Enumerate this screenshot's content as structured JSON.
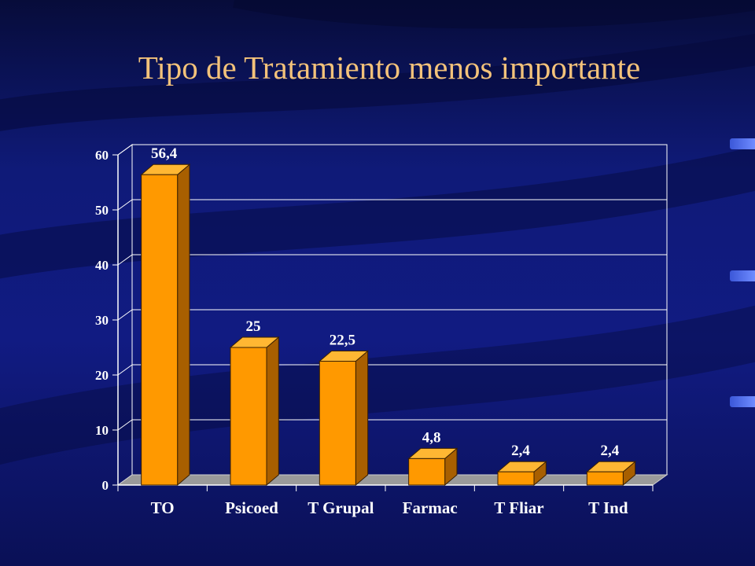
{
  "slide": {
    "title": "Tipo de Tratamiento menos importante",
    "background_color": "#0d1466",
    "title_color": "#f3c27a"
  },
  "chart_data": {
    "type": "bar",
    "title": "",
    "xlabel": "",
    "ylabel": "",
    "categories": [
      "TO",
      "Psicoed",
      "T Grupal",
      "Farmac",
      "T Fliar",
      "T Ind"
    ],
    "series": [
      {
        "values": [
          56.4,
          25,
          22.5,
          4.8,
          2.4,
          2.4
        ]
      }
    ],
    "data_labels": [
      "56,4",
      "25",
      "22,5",
      "4,8",
      "2,4",
      "2,4"
    ],
    "ylim": [
      0,
      60
    ],
    "yticks": [
      0,
      10,
      20,
      30,
      40,
      50,
      60
    ],
    "grid": true,
    "legend": "none",
    "bar_color": "#ff9900",
    "three_d": true
  }
}
